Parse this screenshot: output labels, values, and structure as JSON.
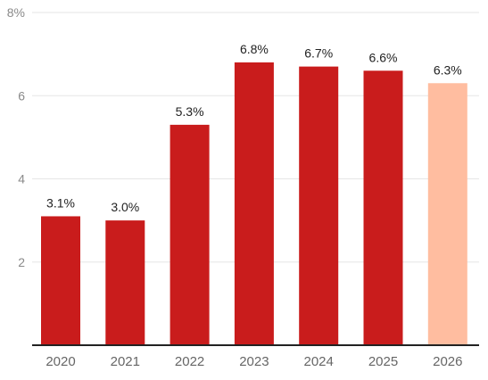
{
  "chart_data": {
    "type": "bar",
    "categories": [
      "2020",
      "2021",
      "2022",
      "2023",
      "2024",
      "2025",
      "2026"
    ],
    "values": [
      3.1,
      3.0,
      5.3,
      6.8,
      6.7,
      6.6,
      6.3
    ],
    "value_labels": [
      "3.1%",
      "3.0%",
      "5.3%",
      "6.8%",
      "6.7%",
      "6.6%",
      "6.3%"
    ],
    "ylim": [
      0,
      8
    ],
    "y_ticks": [
      {
        "value": 2,
        "label": "2"
      },
      {
        "value": 4,
        "label": "4"
      },
      {
        "value": 6,
        "label": "6"
      },
      {
        "value": 8,
        "label": "8%"
      }
    ],
    "grid": true,
    "colors": {
      "actual": "#c91c1c",
      "forecast": "#ffbda0",
      "grid": "#e6e6e6",
      "baseline": "#222222"
    },
    "forecast_categories": [
      "2026"
    ]
  }
}
